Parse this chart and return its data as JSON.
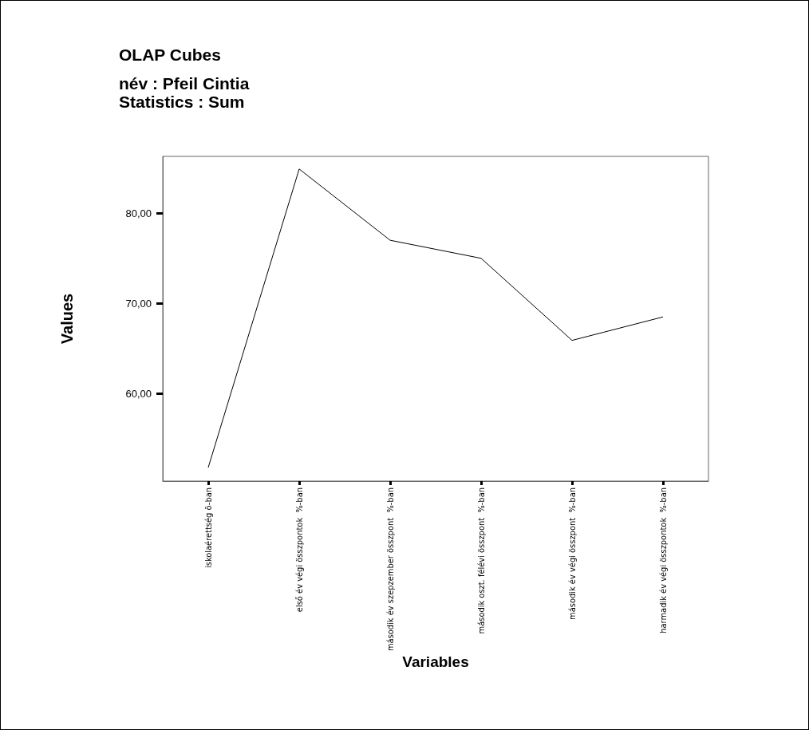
{
  "chart_data": {
    "type": "line",
    "title": "OLAP Cubes",
    "subtitle": "név : Pfeil Cintia\nStatistics : Sum",
    "xlabel": "Variables",
    "ylabel": "Values",
    "categories": [
      "iskolaérettség õ-ban",
      "első év végi összpontok  %-ban",
      "második év szepzember összpont  %-ban",
      "második oszt. félévi összpont  %-ban",
      "második év végi összpont  %-ban",
      "harmadik év végi összpontok  %-ban"
    ],
    "series": [
      {
        "color": "#000000",
        "values": [
          51.8,
          84.9,
          77.0,
          75.0,
          65.9,
          68.5
        ]
      }
    ],
    "ylim": [
      50.3,
      86.3
    ],
    "yticks": [
      {
        "value": 60,
        "label": "60,00"
      },
      {
        "value": 70,
        "label": "70,00"
      },
      {
        "value": 80,
        "label": "80,00"
      }
    ],
    "grid": false,
    "marker": "none",
    "line_style": "solid"
  }
}
